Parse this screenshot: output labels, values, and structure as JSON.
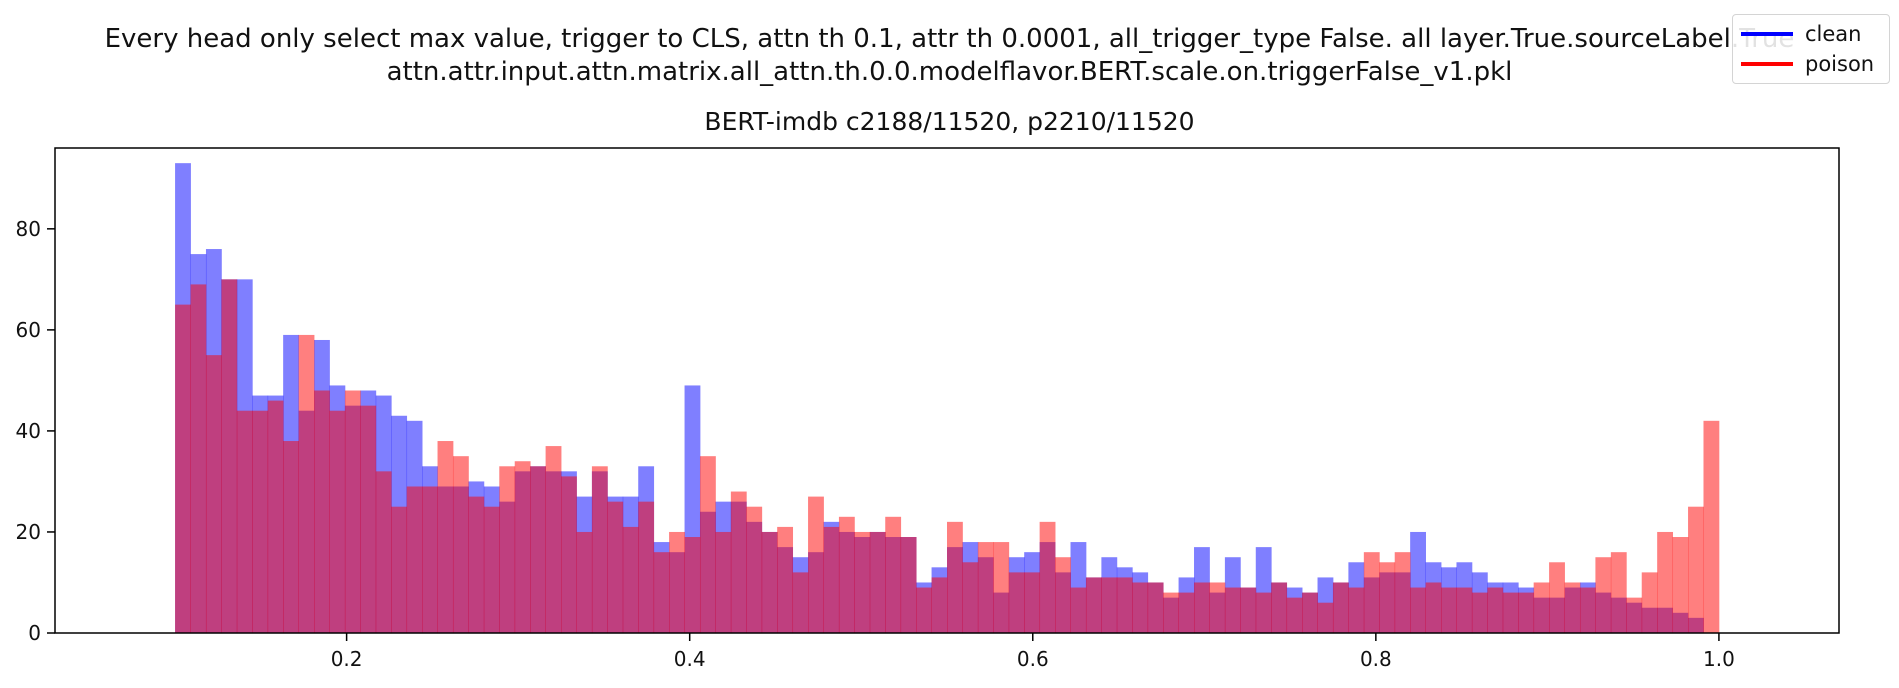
{
  "suptitle": {
    "line1": "Every head only select max value, trigger to CLS, attn th 0.1, attr th 0.0001, all_trigger_type False. all layer.True.sourceLabel.True",
    "line2": "attn.attr.input.attn.matrix.all_attn.th.0.0.modelflavor.BERT.scale.on.triggerFalse_v1.pkl"
  },
  "chart_data": {
    "type": "bar",
    "title": "BERT-imdb c2188/11520, p2210/11520",
    "xlabel": "",
    "ylabel": "",
    "xlim": [
      0.03,
      1.07
    ],
    "ylim": [
      0,
      96
    ],
    "x_ticks": [
      "0.2",
      "0.4",
      "0.6",
      "0.8",
      "1.0"
    ],
    "x_tick_values": [
      0.2,
      0.4,
      0.6,
      0.8,
      1.0
    ],
    "y_ticks": [
      "0",
      "20",
      "40",
      "60",
      "80"
    ],
    "y_tick_values": [
      0,
      20,
      40,
      60,
      80
    ],
    "bin_range": [
      0.1,
      1.0
    ],
    "bins": 100,
    "grid": false,
    "legend_position": "top-right",
    "series": [
      {
        "name": "clean",
        "color": "#0000ff",
        "fill": "rgba(0,0,255,0.5)",
        "values": [
          93,
          75,
          76,
          70,
          70,
          47,
          47,
          59,
          44,
          58,
          49,
          45,
          48,
          47,
          43,
          42,
          33,
          29,
          29,
          30,
          29,
          26,
          32,
          33,
          32,
          32,
          27,
          32,
          27,
          27,
          33,
          18,
          16,
          49,
          24,
          26,
          26,
          22,
          20,
          17,
          15,
          16,
          22,
          20,
          19,
          20,
          19,
          19,
          10,
          13,
          17,
          18,
          15,
          8,
          15,
          16,
          18,
          12,
          18,
          11,
          15,
          13,
          12,
          10,
          7,
          11,
          17,
          8,
          15,
          9,
          17,
          10,
          9,
          8,
          11,
          10,
          14,
          11,
          12,
          12,
          20,
          14,
          13,
          14,
          12,
          10,
          10,
          9,
          7,
          7,
          9,
          10,
          8,
          7,
          6,
          5,
          5,
          4,
          3,
          0
        ]
      },
      {
        "name": "poison",
        "color": "#ff0000",
        "fill": "rgba(255,0,0,0.5)",
        "values": [
          65,
          69,
          55,
          70,
          44,
          44,
          46,
          38,
          59,
          48,
          44,
          48,
          45,
          32,
          25,
          29,
          29,
          38,
          35,
          27,
          25,
          33,
          34,
          33,
          37,
          31,
          20,
          33,
          26,
          21,
          26,
          16,
          20,
          19,
          35,
          20,
          28,
          25,
          20,
          21,
          12,
          27,
          21,
          23,
          20,
          20,
          23,
          19,
          9,
          11,
          22,
          14,
          18,
          18,
          12,
          12,
          22,
          15,
          9,
          11,
          11,
          11,
          10,
          10,
          8,
          8,
          10,
          10,
          9,
          9,
          8,
          10,
          7,
          8,
          6,
          10,
          9,
          16,
          14,
          16,
          9,
          10,
          9,
          9,
          8,
          9,
          8,
          8,
          10,
          14,
          10,
          9,
          15,
          16,
          7,
          12,
          20,
          19,
          25,
          42
        ]
      }
    ]
  }
}
